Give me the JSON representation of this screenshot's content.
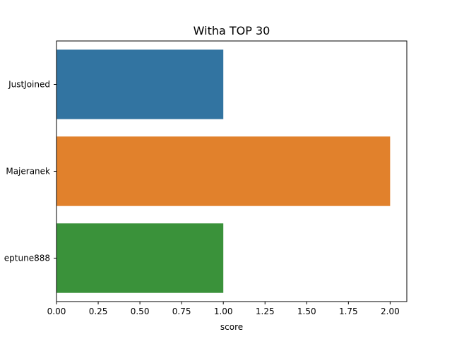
{
  "chart_data": {
    "type": "bar",
    "orientation": "horizontal",
    "title": "Witha TOP 30",
    "xlabel": "score",
    "ylabel": "",
    "categories": [
      "JustJoined",
      "Majeranek",
      "eptune888"
    ],
    "values": [
      1,
      2,
      1
    ],
    "colors": [
      "#3274a1",
      "#e1812c",
      "#3a923a"
    ],
    "xlim": [
      0,
      2.1
    ],
    "xticks": [
      0.0,
      0.25,
      0.5,
      0.75,
      1.0,
      1.25,
      1.5,
      1.75,
      2.0
    ],
    "xtick_labels": [
      "0.00",
      "0.25",
      "0.50",
      "0.75",
      "1.00",
      "1.25",
      "1.50",
      "1.75",
      "2.00"
    ],
    "grid": false,
    "legend": "none"
  }
}
